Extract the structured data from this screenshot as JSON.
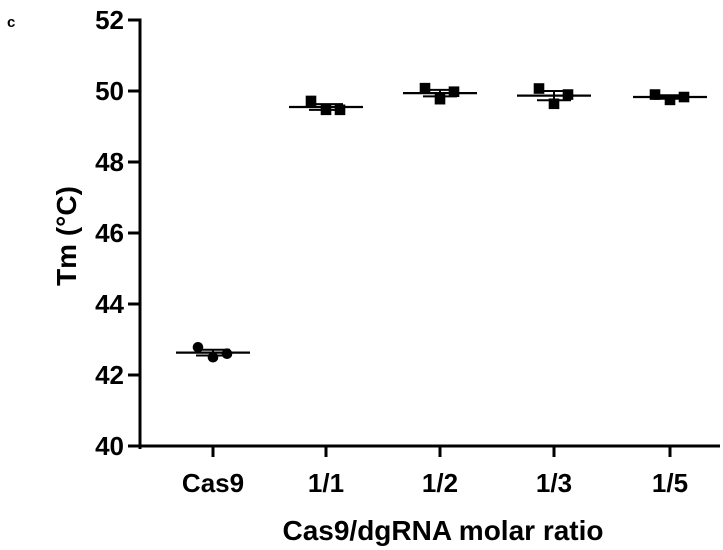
{
  "panel_label": "c",
  "chart_data": {
    "type": "scatter",
    "xlabel": "Cas9/dgRNA molar ratio",
    "ylabel": "Tm (°C)",
    "ylim": [
      40,
      52
    ],
    "yticks": [
      40,
      42,
      44,
      46,
      48,
      50,
      52
    ],
    "categories": [
      "Cas9",
      "1/1",
      "1/2",
      "1/3",
      "1/5"
    ],
    "marker_colors": [
      "#000000",
      "#000000",
      "#000000",
      "#000000",
      "#000000"
    ],
    "series": [
      {
        "category": "Cas9",
        "marker": "circle",
        "points": [
          42.78,
          42.5,
          42.6
        ],
        "mean": 42.63,
        "error": 0.08
      },
      {
        "category": "1/1",
        "marker": "square",
        "points": [
          49.72,
          49.47,
          49.47
        ],
        "mean": 49.55,
        "error": 0.08
      },
      {
        "category": "1/2",
        "marker": "square",
        "points": [
          50.08,
          49.77,
          49.98
        ],
        "mean": 49.94,
        "error": 0.09
      },
      {
        "category": "1/3",
        "marker": "square",
        "points": [
          50.07,
          49.64,
          49.9
        ],
        "mean": 49.87,
        "error": 0.13
      },
      {
        "category": "1/5",
        "marker": "square",
        "points": [
          49.9,
          49.75,
          49.83
        ],
        "mean": 49.83,
        "error": 0.05
      }
    ],
    "grid": false,
    "legend": "none"
  }
}
